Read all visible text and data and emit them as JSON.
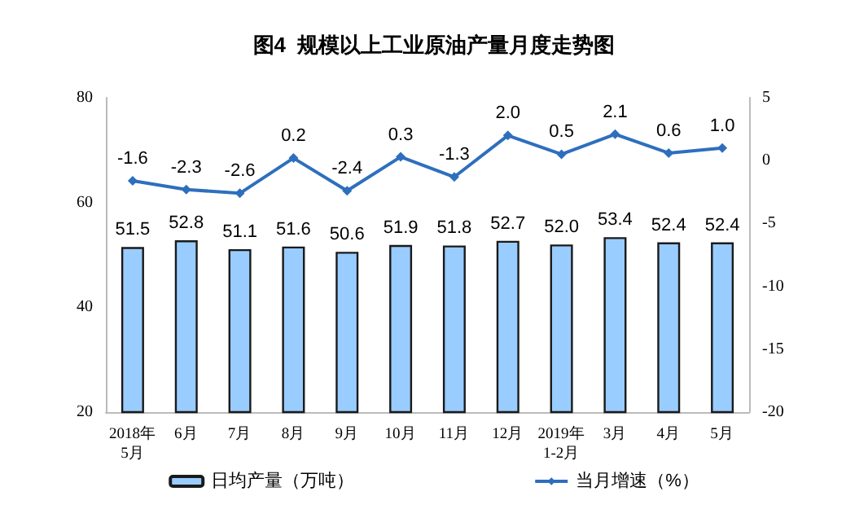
{
  "chart_data": {
    "type": "bar",
    "title": "图4  规模以上工业原油产量月度走势图",
    "categories": [
      "2018年\n5月",
      "6月",
      "7月",
      "8月",
      "9月",
      "10月",
      "11月",
      "12月",
      "2019年\n1-2月",
      "3月",
      "4月",
      "5月"
    ],
    "series": [
      {
        "name": "日均产量（万吨）",
        "color": "#99ccff",
        "values": [
          51.5,
          52.8,
          51.1,
          51.6,
          50.6,
          51.9,
          51.8,
          52.7,
          52.0,
          53.4,
          52.4,
          52.4
        ],
        "value_labels": [
          "51.5",
          "52.8",
          "51.1",
          "51.6",
          "50.6",
          "51.9",
          "51.8",
          "52.7",
          "52.0",
          "53.4",
          "52.4",
          "52.4"
        ]
      },
      {
        "name": "当月增速（%）",
        "type": "line",
        "axis": "y2",
        "color": "#2e6fbd",
        "values": [
          -1.6,
          -2.3,
          -2.6,
          0.2,
          -2.4,
          0.3,
          -1.3,
          2.0,
          0.5,
          2.1,
          0.6,
          1.0
        ],
        "value_labels": [
          "-1.6",
          "-2.3",
          "-2.6",
          "0.2",
          "-2.4",
          "0.3",
          "-1.3",
          "2.0",
          "0.5",
          "2.1",
          "0.6",
          "1.0"
        ]
      }
    ],
    "ylim": [
      20,
      80
    ],
    "yticks": [
      20,
      40,
      60,
      80
    ],
    "y2lim": [
      -20,
      5
    ],
    "y2ticks": [
      -20,
      -15,
      -10,
      -5,
      0,
      5
    ],
    "legend": "bottom",
    "marker": "diamond",
    "line_style": "solid"
  }
}
